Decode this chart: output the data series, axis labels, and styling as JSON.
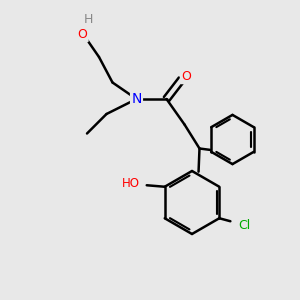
{
  "background_color": "#e8e8e8",
  "atom_colors": {
    "O": "#ff0000",
    "N": "#0000ff",
    "Cl": "#00aa00",
    "C": "#000000",
    "H": "#888888"
  },
  "bond_color": "#000000",
  "bond_width": 1.8,
  "figsize": [
    3.0,
    3.0
  ],
  "dpi": 100
}
